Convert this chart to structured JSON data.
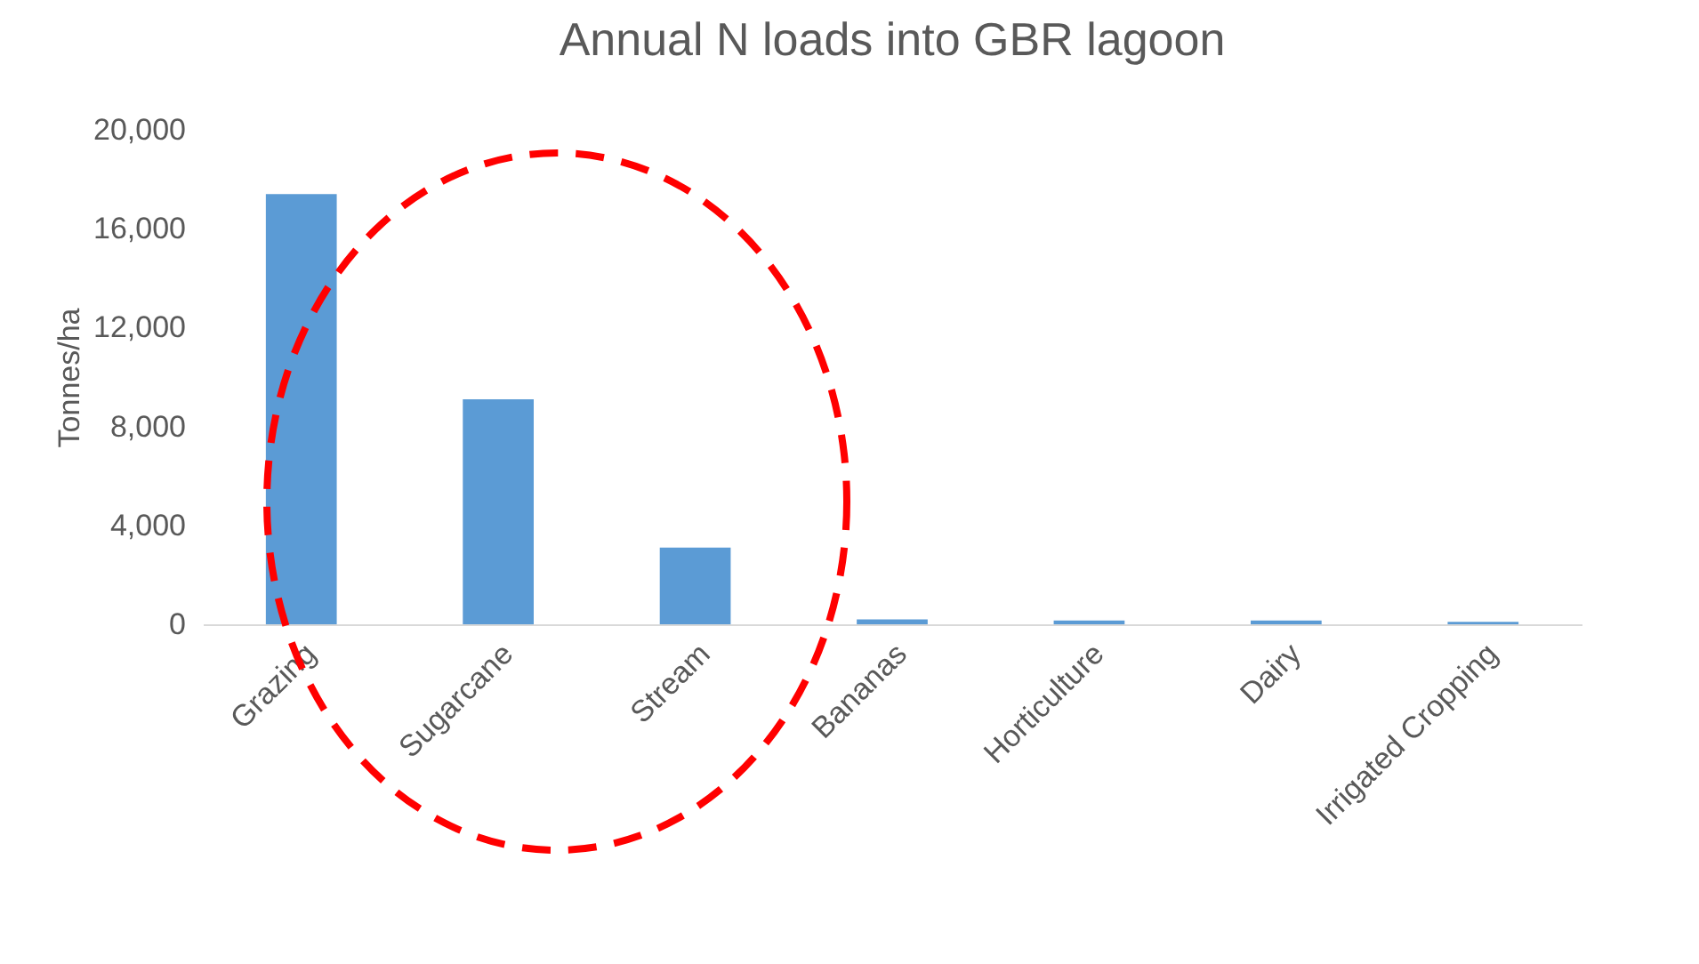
{
  "chart_data": {
    "type": "bar",
    "title": "Annual N loads into GBR lagoon",
    "ylabel": "Tonnes/ha",
    "categories": [
      "Grazing",
      "Sugarcane",
      "Stream",
      "Bananas",
      "Horticulture",
      "Dairy",
      "Irrigated Cropping"
    ],
    "values": [
      17400,
      9100,
      3100,
      200,
      150,
      150,
      100
    ],
    "color": "#5b9bd5",
    "ylim": [
      0,
      20000
    ],
    "yticks": [
      {
        "value": 0,
        "label": "0"
      },
      {
        "value": 4000,
        "label": "4,000"
      },
      {
        "value": 8000,
        "label": "8,000"
      },
      {
        "value": 12000,
        "label": "12,000"
      },
      {
        "value": 16000,
        "label": "16,000"
      },
      {
        "value": 20000,
        "label": "20,000"
      }
    ],
    "grid": false
  }
}
